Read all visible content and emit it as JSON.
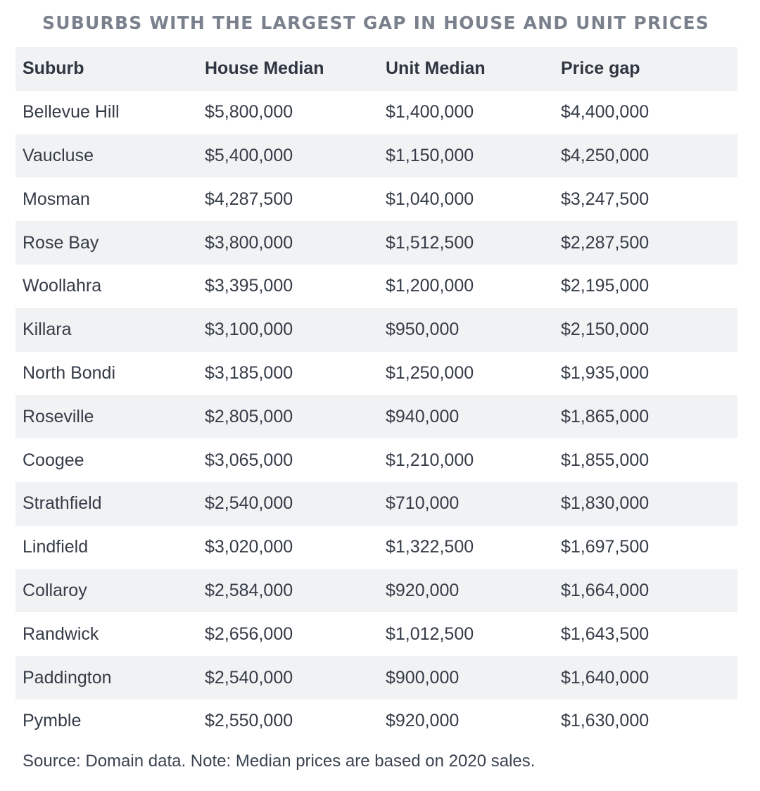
{
  "chart_data": {
    "type": "table",
    "title": "SUBURBS WITH THE LARGEST GAP IN HOUSE AND UNIT PRICES",
    "columns": [
      "Suburb",
      "House Median",
      "Unit Median",
      "Price gap"
    ],
    "rows": [
      [
        "Bellevue Hill",
        "$5,800,000",
        "$1,400,000",
        "$4,400,000"
      ],
      [
        "Vaucluse",
        "$5,400,000",
        "$1,150,000",
        "$4,250,000"
      ],
      [
        "Mosman",
        "$4,287,500",
        "$1,040,000",
        "$3,247,500"
      ],
      [
        "Rose Bay",
        "$3,800,000",
        "$1,512,500",
        "$2,287,500"
      ],
      [
        "Woollahra",
        "$3,395,000",
        "$1,200,000",
        "$2,195,000"
      ],
      [
        "Killara",
        "$3,100,000",
        "$950,000",
        "$2,150,000"
      ],
      [
        "North Bondi",
        "$3,185,000",
        "$1,250,000",
        "$1,935,000"
      ],
      [
        "Roseville",
        "$2,805,000",
        "$940,000",
        "$1,865,000"
      ],
      [
        "Coogee",
        "$3,065,000",
        "$1,210,000",
        "$1,855,000"
      ],
      [
        "Strathfield",
        "$2,540,000",
        "$710,000",
        "$1,830,000"
      ],
      [
        "Lindfield",
        "$3,020,000",
        "$1,322,500",
        "$1,697,500"
      ],
      [
        "Collaroy",
        "$2,584,000",
        "$920,000",
        "$1,664,000"
      ],
      [
        "Randwick",
        "$2,656,000",
        "$1,012,500",
        "$1,643,500"
      ],
      [
        "Paddington",
        "$2,540,000",
        "$900,000",
        "$1,640,000"
      ],
      [
        "Pymble",
        "$2,550,000",
        "$920,000",
        "$1,630,000"
      ]
    ],
    "source": "Source: Domain data. Note: Median prices are based on 2020 sales."
  },
  "colors": {
    "stripe": "#f1f2f4",
    "title": "#7a818d",
    "text": "#353c47"
  }
}
